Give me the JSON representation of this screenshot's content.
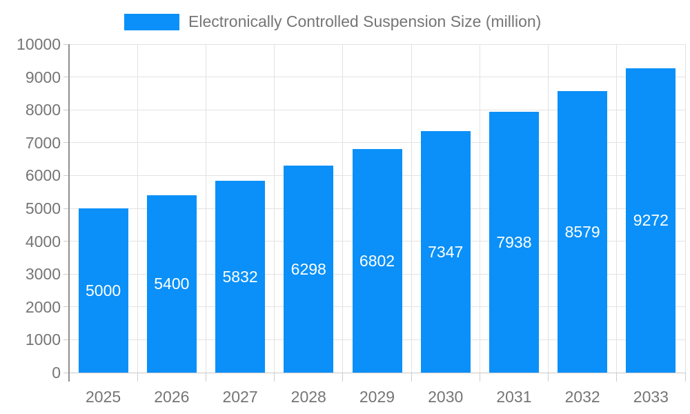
{
  "legend": {
    "label": "Electronically Controlled Suspension Size (million)"
  },
  "chart_data": {
    "type": "bar",
    "title": "Electronically Controlled Suspension Size (million)",
    "categories": [
      "2025",
      "2026",
      "2027",
      "2028",
      "2029",
      "2030",
      "2031",
      "2032",
      "2033"
    ],
    "values": [
      5000,
      5400,
      5832,
      6298,
      6802,
      7347,
      7938,
      8579,
      9272
    ],
    "value_labels": [
      "5000",
      "5400",
      "5832",
      "6298",
      "6802",
      "7347",
      "7938",
      "8579",
      "9272"
    ],
    "xlabel": "",
    "ylabel": "",
    "ylim": [
      0,
      10000
    ],
    "ytick_step": 1000,
    "ytick_labels": [
      "0",
      "1000",
      "2000",
      "3000",
      "4000",
      "5000",
      "6000",
      "7000",
      "8000",
      "9000",
      "10000"
    ],
    "grid": true,
    "legend_position": "top",
    "colors": {
      "bar": "#0a90f8",
      "bar_value_text": "#ffffff",
      "axis_text": "#757575",
      "gridline": "#e2e2e2",
      "y_axis_line": "#8f8f8f",
      "x_axis_line": "#c9c9c9"
    }
  }
}
